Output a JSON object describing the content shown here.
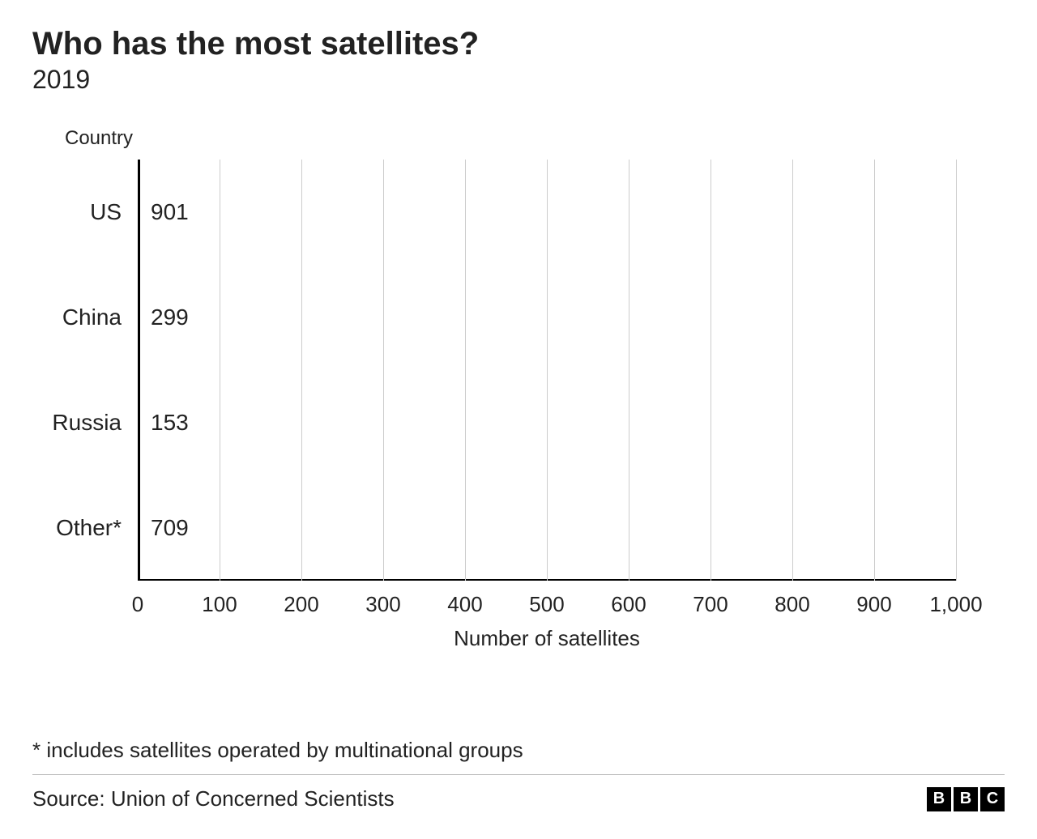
{
  "header": {
    "title": "Who has the most satellites?",
    "subtitle": "2019"
  },
  "chart": {
    "type": "bar-horizontal",
    "y_axis_title": "Country",
    "x_axis_title": "Number of satellites",
    "categories": [
      "US",
      "China",
      "Russia",
      "Other*"
    ],
    "values": [
      901,
      299,
      153,
      709
    ],
    "bar_color": "#a40e0e",
    "background_color": "#ffffff",
    "grid_color": "#cccccc",
    "axis_color": "#000000",
    "text_color": "#222222",
    "xlim": [
      0,
      1000
    ],
    "xtick_step": 100,
    "xticks": [
      0,
      100,
      200,
      300,
      400,
      500,
      600,
      700,
      800,
      900,
      1000
    ],
    "xtick_labels": [
      "0",
      "100",
      "200",
      "300",
      "400",
      "500",
      "600",
      "700",
      "800",
      "900",
      "1,000"
    ],
    "bar_height_ratio": 0.7,
    "title_fontsize": 40,
    "subtitle_fontsize": 32,
    "label_fontsize": 28,
    "tick_fontsize": 26
  },
  "footer": {
    "footnote": "* includes satellites operated by multinational groups",
    "source": "Source: Union of Concerned Scientists",
    "logo_letters": [
      "B",
      "B",
      "C"
    ]
  }
}
